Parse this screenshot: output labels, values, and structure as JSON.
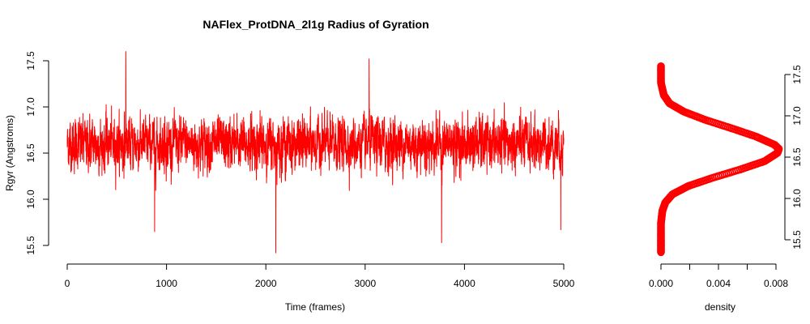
{
  "chart_data": [
    {
      "type": "line",
      "title": "NAFlex_ProtDNA_2l1g Radius of Gyration",
      "xlabel": "Time (frames)",
      "ylabel": "Rgyr (Angstroms)",
      "xlim": [
        0,
        5000
      ],
      "ylim": [
        15.5,
        17.5
      ],
      "xticks": [
        "0",
        "1000",
        "2000",
        "3000",
        "4000",
        "5000"
      ],
      "yticks": [
        "15.5",
        "16.0",
        "16.5",
        "17.0",
        "17.5"
      ],
      "grid": false,
      "color": "#ff0000",
      "series": [
        {
          "summary": {
            "frames": 5000,
            "mean": 16.6,
            "sd": 0.2,
            "min": 15.42,
            "max": 17.6
          },
          "notable_points": [
            {
              "x": 590,
              "y": 17.6
            },
            {
              "x": 880,
              "y": 15.65
            },
            {
              "x": 2100,
              "y": 15.42
            },
            {
              "x": 3040,
              "y": 17.52
            },
            {
              "x": 3770,
              "y": 15.53
            },
            {
              "x": 4970,
              "y": 15.67
            }
          ]
        }
      ]
    },
    {
      "type": "line",
      "xlabel": "density",
      "ylabel": "",
      "xlim": [
        0,
        0.008
      ],
      "ylim": [
        15.5,
        17.5
      ],
      "xticks": [
        "0.000",
        "0.004",
        "0.008"
      ],
      "yticks": [
        "15.5",
        "16.0",
        "16.5",
        "17.0",
        "17.5"
      ],
      "grid": false,
      "color": "#ff0000",
      "marker": "circle",
      "series": [
        {
          "y": [
            15.35,
            15.5,
            15.7,
            15.85,
            15.95,
            16.05,
            16.15,
            16.25,
            16.35,
            16.45,
            16.55,
            16.6,
            16.65,
            16.75,
            16.85,
            16.95,
            17.05,
            17.15,
            17.25,
            17.4,
            17.6
          ],
          "x": [
            0.0,
            0.0,
            0.0,
            0.0001,
            0.0003,
            0.0008,
            0.0019,
            0.0036,
            0.0055,
            0.0072,
            0.0081,
            0.0082,
            0.0079,
            0.0066,
            0.0049,
            0.0031,
            0.0016,
            0.0006,
            0.0002,
            0.0,
            0.0
          ]
        }
      ]
    }
  ]
}
